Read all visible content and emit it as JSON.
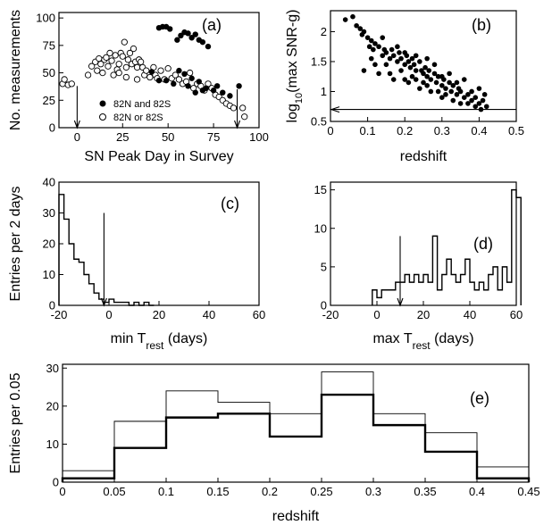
{
  "chart_data": [
    {
      "id": "a",
      "type": "scatter",
      "panel_label": "(a)",
      "xlabel": "SN Peak Day in Survey",
      "ylabel": "No. measurements",
      "xlim": [
        -10,
        100
      ],
      "ylim": [
        0,
        105
      ],
      "xticks": [
        0,
        25,
        50,
        75,
        100
      ],
      "yticks": [
        0,
        25,
        50,
        75,
        100
      ],
      "legend_position": "bottom-center",
      "arrows": [
        {
          "x": 0,
          "y_from": 38,
          "y_to": 0
        },
        {
          "x": 88,
          "y_from": 35,
          "y_to": 0
        }
      ],
      "series": [
        {
          "name": "82N and 82S",
          "marker": "filled-circle",
          "points": [
            [
              45,
              91
            ],
            [
              47,
              92
            ],
            [
              49,
              92
            ],
            [
              51,
              90
            ],
            [
              55,
              80
            ],
            [
              57,
              84
            ],
            [
              59,
              87
            ],
            [
              61,
              86
            ],
            [
              63,
              82
            ],
            [
              65,
              85
            ],
            [
              67,
              80
            ],
            [
              69,
              78
            ],
            [
              72,
              74
            ],
            [
              89,
              38
            ],
            [
              41,
              51
            ],
            [
              45,
              43
            ],
            [
              49,
              43
            ],
            [
              53,
              40
            ],
            [
              56,
              52
            ],
            [
              59,
              49
            ],
            [
              63,
              45
            ],
            [
              67,
              42
            ],
            [
              71,
              36
            ],
            [
              75,
              34
            ],
            [
              80,
              32
            ],
            [
              61,
              38
            ],
            [
              65,
              32
            ],
            [
              69,
              34
            ],
            [
              77,
              38
            ],
            [
              84,
              29
            ]
          ]
        },
        {
          "name": "82N or 82S",
          "marker": "open-circle",
          "points": [
            [
              -8,
              40
            ],
            [
              -7,
              44
            ],
            [
              -5,
              39
            ],
            [
              -3,
              40
            ],
            [
              6,
              48
            ],
            [
              8,
              56
            ],
            [
              10,
              60
            ],
            [
              11,
              52
            ],
            [
              12,
              63
            ],
            [
              13,
              58
            ],
            [
              14,
              50
            ],
            [
              15,
              62
            ],
            [
              16,
              64
            ],
            [
              17,
              56
            ],
            [
              18,
              68
            ],
            [
              19,
              61
            ],
            [
              20,
              48
            ],
            [
              21,
              66
            ],
            [
              22,
              53
            ],
            [
              23,
              58
            ],
            [
              24,
              68
            ],
            [
              25,
              65
            ],
            [
              26,
              78
            ],
            [
              27,
              55
            ],
            [
              28,
              62
            ],
            [
              29,
              68
            ],
            [
              30,
              58
            ],
            [
              31,
              72
            ],
            [
              32,
              60
            ],
            [
              33,
              55
            ],
            [
              34,
              62
            ],
            [
              35,
              60
            ],
            [
              36,
              55
            ],
            [
              37,
              48
            ],
            [
              38,
              52
            ],
            [
              40,
              46
            ],
            [
              42,
              55
            ],
            [
              43,
              48
            ],
            [
              44,
              45
            ],
            [
              46,
              52
            ],
            [
              48,
              44
            ],
            [
              50,
              54
            ],
            [
              52,
              45
            ],
            [
              54,
              48
            ],
            [
              56,
              44
            ],
            [
              58,
              40
            ],
            [
              60,
              42
            ],
            [
              62,
              50
            ],
            [
              64,
              36
            ],
            [
              66,
              40
            ],
            [
              68,
              38
            ],
            [
              70,
              34
            ],
            [
              72,
              40
            ],
            [
              74,
              36
            ],
            [
              76,
              30
            ],
            [
              78,
              28
            ],
            [
              80,
              25
            ],
            [
              82,
              22
            ],
            [
              84,
              20
            ],
            [
              86,
              18
            ],
            [
              91,
              18
            ],
            [
              92,
              10
            ],
            [
              23,
              50
            ],
            [
              27,
              46
            ],
            [
              33,
              44
            ]
          ]
        }
      ]
    },
    {
      "id": "b",
      "type": "scatter",
      "panel_label": "(b)",
      "xlabel": "redshift",
      "ylabel": "log10(max SNR-g)",
      "xlim": [
        0,
        0.5
      ],
      "ylim": [
        0.5,
        2.35
      ],
      "xticks": [
        0,
        0.1,
        0.2,
        0.3,
        0.4,
        0.5
      ],
      "yticks": [
        0.5,
        1,
        1.5,
        2
      ],
      "threshold": {
        "y": 0.7,
        "arrow": "left"
      },
      "series": [
        {
          "name": "",
          "marker": "filled-circle",
          "points": [
            [
              0.04,
              2.2
            ],
            [
              0.06,
              2.25
            ],
            [
              0.07,
              2.1
            ],
            [
              0.08,
              2.05
            ],
            [
              0.085,
              1.95
            ],
            [
              0.09,
              2.0
            ],
            [
              0.1,
              1.9
            ],
            [
              0.105,
              1.75
            ],
            [
              0.11,
              1.85
            ],
            [
              0.115,
              1.7
            ],
            [
              0.12,
              1.8
            ],
            [
              0.13,
              1.75
            ],
            [
              0.14,
              1.6
            ],
            [
              0.145,
              1.7
            ],
            [
              0.15,
              1.65
            ],
            [
              0.16,
              1.55
            ],
            [
              0.165,
              1.7
            ],
            [
              0.17,
              1.6
            ],
            [
              0.18,
              1.5
            ],
            [
              0.185,
              1.65
            ],
            [
              0.19,
              1.55
            ],
            [
              0.2,
              1.45
            ],
            [
              0.205,
              1.6
            ],
            [
              0.21,
              1.5
            ],
            [
              0.215,
              1.4
            ],
            [
              0.22,
              1.55
            ],
            [
              0.225,
              1.45
            ],
            [
              0.23,
              1.35
            ],
            [
              0.24,
              1.5
            ],
            [
              0.245,
              1.35
            ],
            [
              0.25,
              1.3
            ],
            [
              0.255,
              1.4
            ],
            [
              0.26,
              1.25
            ],
            [
              0.265,
              1.35
            ],
            [
              0.27,
              1.2
            ],
            [
              0.28,
              1.3
            ],
            [
              0.285,
              1.15
            ],
            [
              0.29,
              1.25
            ],
            [
              0.3,
              1.1
            ],
            [
              0.305,
              1.2
            ],
            [
              0.31,
              1.05
            ],
            [
              0.32,
              1.15
            ],
            [
              0.325,
              1.0
            ],
            [
              0.33,
              1.1
            ],
            [
              0.34,
              0.95
            ],
            [
              0.345,
              1.05
            ],
            [
              0.35,
              1.0
            ],
            [
              0.36,
              0.9
            ],
            [
              0.37,
              0.95
            ],
            [
              0.38,
              0.85
            ],
            [
              0.39,
              0.9
            ],
            [
              0.4,
              0.8
            ],
            [
              0.41,
              0.85
            ],
            [
              0.42,
              0.75
            ],
            [
              0.09,
              1.35
            ],
            [
              0.12,
              1.45
            ],
            [
              0.13,
              1.3
            ],
            [
              0.16,
              1.3
            ],
            [
              0.17,
              1.2
            ],
            [
              0.19,
              1.35
            ],
            [
              0.2,
              1.2
            ],
            [
              0.21,
              1.15
            ],
            [
              0.22,
              1.25
            ],
            [
              0.24,
              1.05
            ],
            [
              0.25,
              1.15
            ],
            [
              0.27,
              1.0
            ],
            [
              0.29,
              1.0
            ],
            [
              0.3,
              0.9
            ],
            [
              0.31,
              0.95
            ],
            [
              0.33,
              0.85
            ],
            [
              0.35,
              0.8
            ],
            [
              0.37,
              0.8
            ],
            [
              0.39,
              0.75
            ],
            [
              0.405,
              0.7
            ],
            [
              0.14,
              1.9
            ],
            [
              0.18,
              1.75
            ],
            [
              0.23,
              1.6
            ],
            [
              0.26,
              1.55
            ],
            [
              0.28,
              1.45
            ],
            [
              0.32,
              1.3
            ],
            [
              0.36,
              1.2
            ],
            [
              0.4,
              1.05
            ],
            [
              0.415,
              0.95
            ],
            [
              0.11,
              1.55
            ],
            [
              0.15,
              1.45
            ],
            [
              0.2,
              1.65
            ],
            [
              0.23,
              1.2
            ],
            [
              0.26,
              1.1
            ],
            [
              0.3,
              1.25
            ],
            [
              0.34,
              1.15
            ],
            [
              0.38,
              1.0
            ]
          ]
        }
      ]
    },
    {
      "id": "c",
      "type": "histogram",
      "panel_label": "(c)",
      "xlabel": "min T",
      "xlabel_sub": "rest",
      "xlabel_suffix": " (days)",
      "ylabel": "Entries per 2 days",
      "xlim": [
        -20,
        60
      ],
      "ylim": [
        0,
        40
      ],
      "xticks": [
        -20,
        0,
        20,
        40,
        60
      ],
      "yticks": [
        0,
        10,
        20,
        30,
        40
      ],
      "cut": {
        "x": -2,
        "y_from": 30,
        "y_to": 0
      },
      "bin_width": 2,
      "bin_edges_start": -20,
      "values": [
        36,
        28,
        20,
        15,
        14,
        10,
        7,
        4,
        2,
        1,
        2,
        1,
        1,
        1,
        0,
        1,
        0,
        1,
        0
      ]
    },
    {
      "id": "d",
      "type": "histogram",
      "panel_label": "(d)",
      "xlabel": "max T",
      "xlabel_sub": "rest",
      "xlabel_suffix": " (days)",
      "ylabel": "",
      "xlim": [
        -20,
        60
      ],
      "ylim": [
        0,
        16
      ],
      "xticks": [
        -20,
        0,
        20,
        40,
        60
      ],
      "yticks": [
        0,
        5,
        10,
        15
      ],
      "cut": {
        "x": 10,
        "y_from": 9,
        "y_to": 0
      },
      "bin_width": 2,
      "bin_edges_start": -2,
      "values": [
        2,
        1,
        2,
        2,
        2,
        3,
        3,
        4,
        3,
        4,
        3,
        4,
        3,
        9,
        2,
        4,
        6,
        4,
        3,
        4,
        6,
        3,
        2,
        3,
        2,
        4,
        5,
        2,
        5,
        3,
        15,
        14
      ]
    },
    {
      "id": "e",
      "type": "histogram",
      "panel_label": "(e)",
      "xlabel": "redshift",
      "ylabel": "Entries per 0.05",
      "xlim": [
        0,
        0.45
      ],
      "ylim": [
        0,
        31
      ],
      "xticks": [
        "0",
        "0.05",
        "0.1",
        "0.15",
        "0.2",
        "0.25",
        "0.3",
        "0.35",
        "0.4",
        "0.45"
      ],
      "yticks": [
        0,
        10,
        20,
        30
      ],
      "bin_edges": [
        0,
        0.05,
        0.1,
        0.15,
        0.2,
        0.25,
        0.3,
        0.35,
        0.4,
        0.45
      ],
      "series": [
        {
          "name": "",
          "style": "thin",
          "values": [
            3,
            16,
            24,
            21,
            18,
            29,
            18,
            13,
            4
          ]
        },
        {
          "name": "",
          "style": "thick",
          "values": [
            1,
            9,
            17,
            18,
            12,
            23,
            15,
            8,
            1
          ]
        }
      ]
    }
  ]
}
